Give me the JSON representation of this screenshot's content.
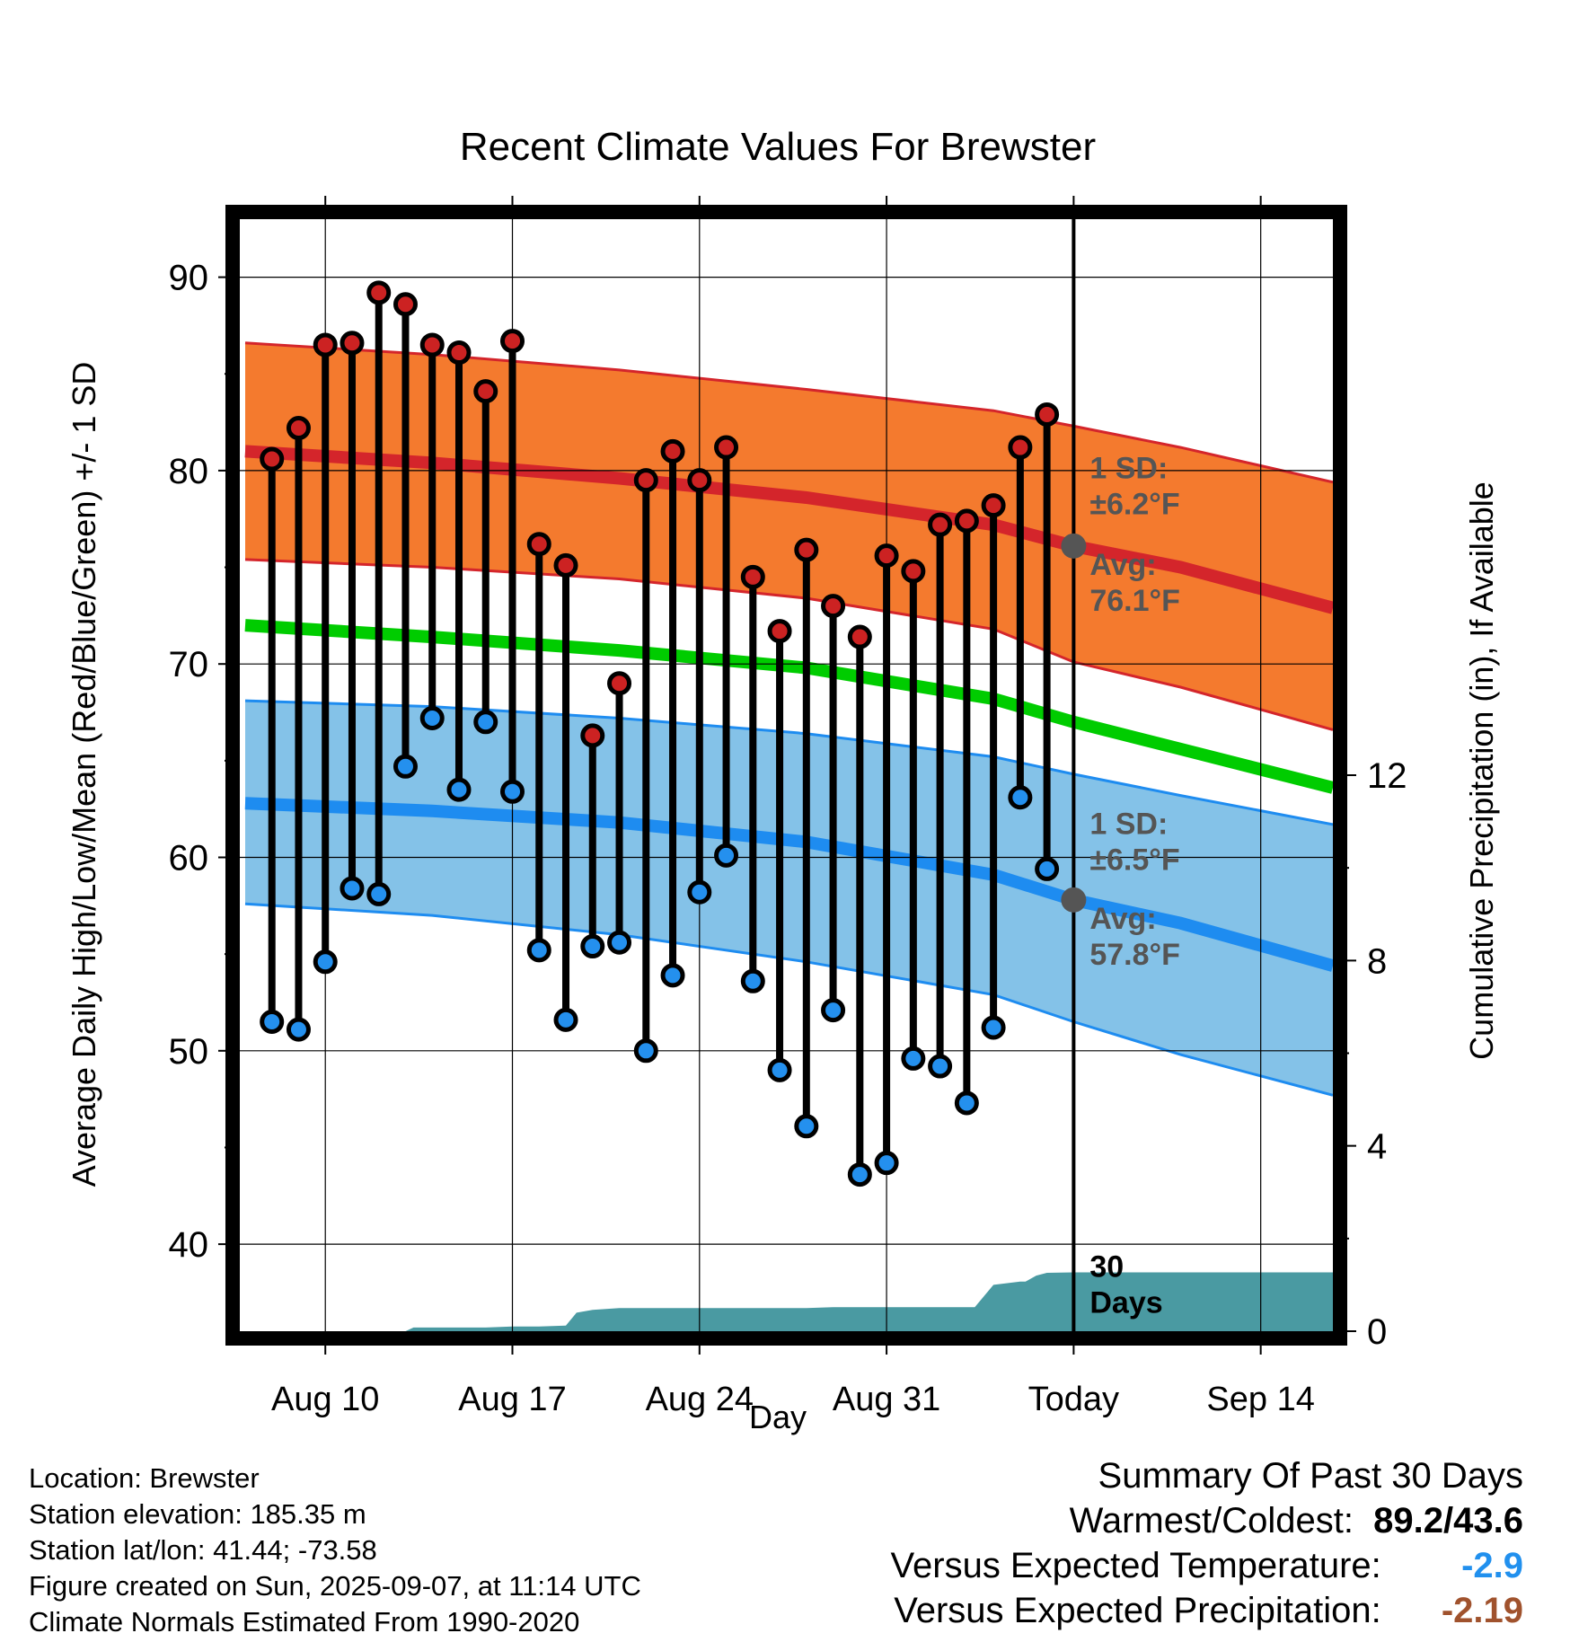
{
  "chart_data": {
    "type": "line",
    "title": "Recent Climate Values For Brewster",
    "xlabel": "Day",
    "ylabel": "Average Daily High/Low/Mean (Red/Blue/Green) +/- 1 SD",
    "y2label": "Cumulative Precipitation (in), If Available",
    "ylim": [
      35.5,
      93
    ],
    "y2lim": [
      0,
      24
    ],
    "y_ticks": [
      40,
      50,
      60,
      70,
      80,
      90
    ],
    "y2_ticks": [
      0,
      4,
      8,
      12
    ],
    "x_ticks": [
      "Aug 10",
      "Aug 17",
      "Aug 24",
      "Aug 31",
      "Today",
      "Sep 14"
    ],
    "x_tick_days": [
      10,
      17,
      24,
      31,
      38,
      45
    ],
    "x_range_days": [
      6.8,
      47.7
    ],
    "today_day": 38,
    "grid": true,
    "colors": {
      "high_band": "#f47a2e",
      "high_line": "#d4252b",
      "low_band": "#84c2e8",
      "low_line": "#1e8cf0",
      "mean_line": "#00cc00",
      "precip": "#4a9aa2",
      "high_marker": "#cc2222",
      "low_marker": "#2490ee",
      "avg_marker": "#555555",
      "annotation": "#555555"
    },
    "normals": {
      "days": [
        7,
        14,
        21,
        28,
        35,
        38,
        42,
        47.7
      ],
      "high_avg": [
        81.0,
        80.4,
        79.6,
        78.6,
        77.2,
        76.1,
        75.0,
        72.9
      ],
      "high_upper": [
        86.6,
        86.0,
        85.2,
        84.2,
        83.1,
        82.3,
        81.2,
        79.4
      ],
      "high_lower": [
        75.4,
        75.0,
        74.4,
        73.4,
        71.8,
        70.1,
        68.8,
        66.6
      ],
      "mean": [
        72.0,
        71.4,
        70.7,
        69.8,
        68.2,
        67.0,
        65.6,
        63.6
      ],
      "low_avg": [
        62.8,
        62.4,
        61.8,
        60.8,
        59.1,
        57.8,
        56.6,
        54.4
      ],
      "low_upper": [
        68.1,
        67.8,
        67.2,
        66.4,
        65.2,
        64.3,
        63.2,
        61.7
      ],
      "low_lower": [
        57.6,
        57.0,
        56.0,
        54.6,
        52.9,
        51.5,
        49.8,
        47.7
      ]
    },
    "series": [
      {
        "name": "High",
        "days": [
          8,
          9,
          10,
          11,
          12,
          13,
          14,
          15,
          16,
          17,
          18,
          19,
          20,
          21,
          22,
          23,
          24,
          25,
          26,
          27,
          28,
          29,
          30,
          31,
          32,
          33,
          34,
          35,
          36,
          37
        ],
        "values": [
          80.6,
          82.2,
          86.5,
          86.6,
          89.2,
          88.6,
          86.5,
          86.1,
          84.1,
          86.7,
          76.2,
          75.1,
          66.3,
          69.0,
          79.5,
          81.0,
          79.5,
          81.2,
          74.5,
          71.7,
          75.9,
          73.0,
          71.4,
          75.6,
          74.8,
          77.2,
          77.4,
          78.2,
          81.2,
          82.9
        ]
      },
      {
        "name": "Low",
        "days": [
          8,
          9,
          10,
          11,
          12,
          13,
          14,
          15,
          16,
          17,
          18,
          19,
          20,
          21,
          22,
          23,
          24,
          25,
          26,
          27,
          28,
          29,
          30,
          31,
          32,
          33,
          34,
          35,
          36,
          37
        ],
        "values": [
          51.5,
          51.1,
          54.6,
          58.4,
          58.1,
          64.7,
          67.2,
          63.5,
          67.0,
          63.4,
          55.2,
          51.6,
          55.4,
          55.6,
          50.0,
          53.9,
          58.2,
          60.1,
          53.6,
          49.0,
          46.1,
          52.1,
          43.6,
          44.2,
          49.6,
          49.2,
          47.3,
          51.2,
          63.1,
          59.4
        ]
      },
      {
        "name": "Cumulative Precipitation",
        "days": [
          8,
          9,
          10,
          11,
          12,
          13,
          13.3,
          14,
          15,
          16,
          17,
          18,
          19,
          19.4,
          20,
          21,
          22,
          23,
          24,
          25,
          26,
          27,
          28,
          29,
          30,
          31,
          32,
          33,
          34,
          34.3,
          35,
          36,
          36.2,
          36.6,
          37,
          38,
          39,
          40,
          45,
          47.7
        ],
        "values": [
          0,
          0,
          0,
          0,
          0,
          0,
          0.08,
          0.08,
          0.08,
          0.08,
          0.1,
          0.1,
          0.12,
          0.4,
          0.46,
          0.5,
          0.5,
          0.5,
          0.5,
          0.5,
          0.5,
          0.5,
          0.5,
          0.52,
          0.52,
          0.52,
          0.52,
          0.52,
          0.52,
          0.52,
          1.0,
          1.07,
          1.07,
          1.2,
          1.26,
          1.27,
          1.27,
          1.27,
          1.27,
          1.27
        ]
      }
    ],
    "annotations": {
      "high_sd": [
        "1 SD:",
        "±6.2°F"
      ],
      "high_avg": [
        "Avg:",
        "76.1°F"
      ],
      "low_sd": [
        "1 SD:",
        "±6.5°F"
      ],
      "low_avg": [
        "Avg:",
        "57.8°F"
      ],
      "window": [
        "30",
        "Days"
      ]
    }
  },
  "info": {
    "location": "Location: Brewster",
    "elevation": "Station elevation: 185.35 m",
    "latlon": "Station lat/lon: 41.44; -73.58",
    "created": "Figure created on Sun, 2025-09-07, at 11:14 UTC",
    "normals": "Climate Normals Estimated From 1990-2020"
  },
  "summary": {
    "title": "Summary Of Past 30 Days",
    "warmest_label": "Warmest/Coldest:",
    "warmest_value": "89.2/43.6",
    "temp_label": "Versus Expected Temperature:",
    "temp_value": "-2.9",
    "temp_color": "#2190ee",
    "precip_label": "Versus Expected Precipitation:",
    "precip_value": "-2.19",
    "precip_color": "#a0522d"
  }
}
